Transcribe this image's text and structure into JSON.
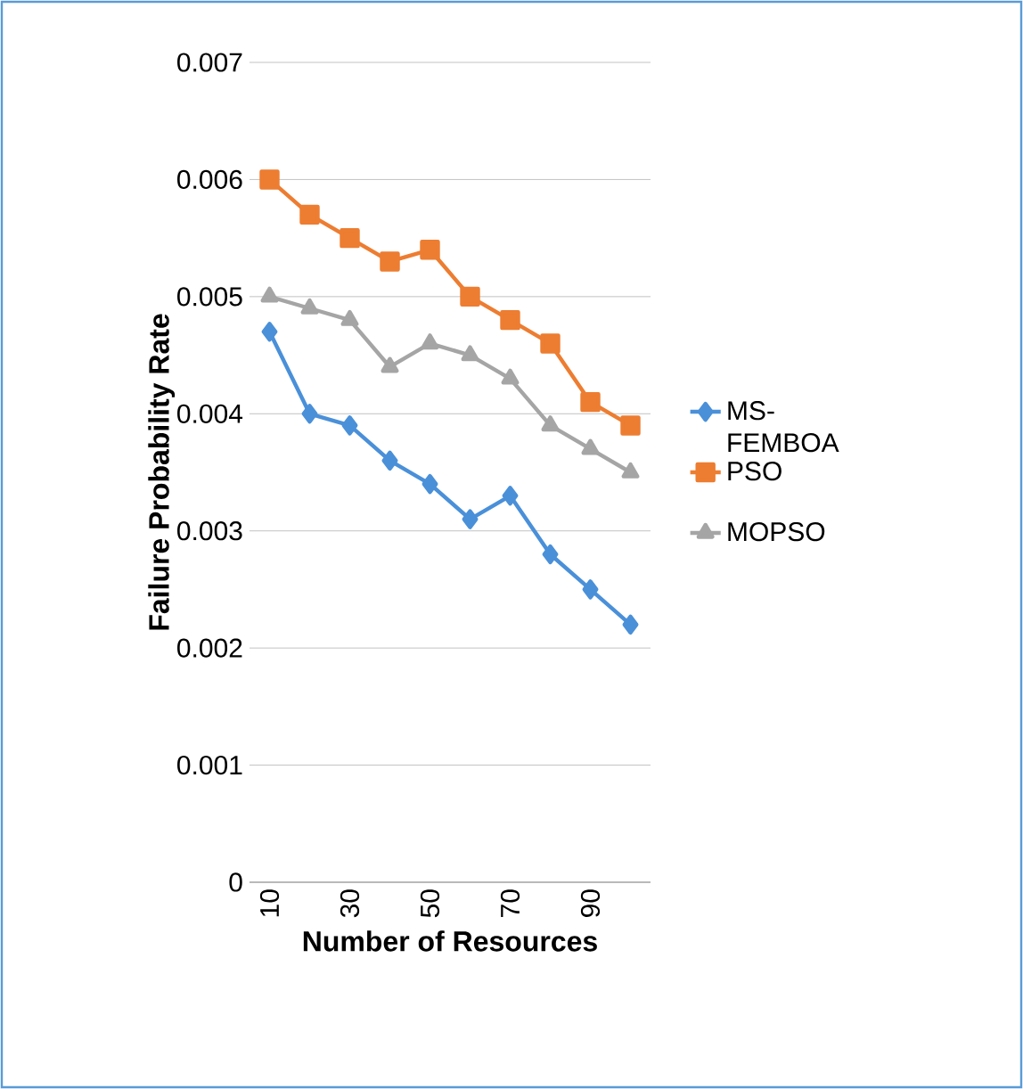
{
  "chart_data": {
    "type": "line",
    "xlabel": "Number of Resources",
    "ylabel": "Failure Probability Rate",
    "categories": [
      "10",
      null,
      "30",
      null,
      "50",
      null,
      "70",
      null,
      "90",
      null
    ],
    "series": [
      {
        "name": "MS-FEMBOA",
        "color": "#4a90d9",
        "marker": "diamond",
        "values": [
          0.0047,
          0.004,
          0.0039,
          0.0036,
          0.0034,
          0.0031,
          0.0033,
          0.0028,
          0.0025,
          0.0022
        ]
      },
      {
        "name": "PSO",
        "color": "#ed7d31",
        "marker": "square",
        "values": [
          0.006,
          0.0057,
          0.0055,
          0.0053,
          0.0054,
          0.005,
          0.0048,
          0.0046,
          0.0041,
          0.0039
        ]
      },
      {
        "name": "MOPSO",
        "color": "#a5a5a5",
        "marker": "triangle",
        "values": [
          0.005,
          0.0049,
          0.0048,
          0.0044,
          0.0046,
          0.0045,
          0.0043,
          0.0039,
          0.0037,
          0.0035
        ]
      }
    ],
    "ylim": [
      0,
      0.007
    ],
    "yticks": [
      0,
      0.001,
      0.002,
      0.003,
      0.004,
      0.005,
      0.006,
      0.007
    ],
    "grid": "y",
    "legend": "right"
  }
}
